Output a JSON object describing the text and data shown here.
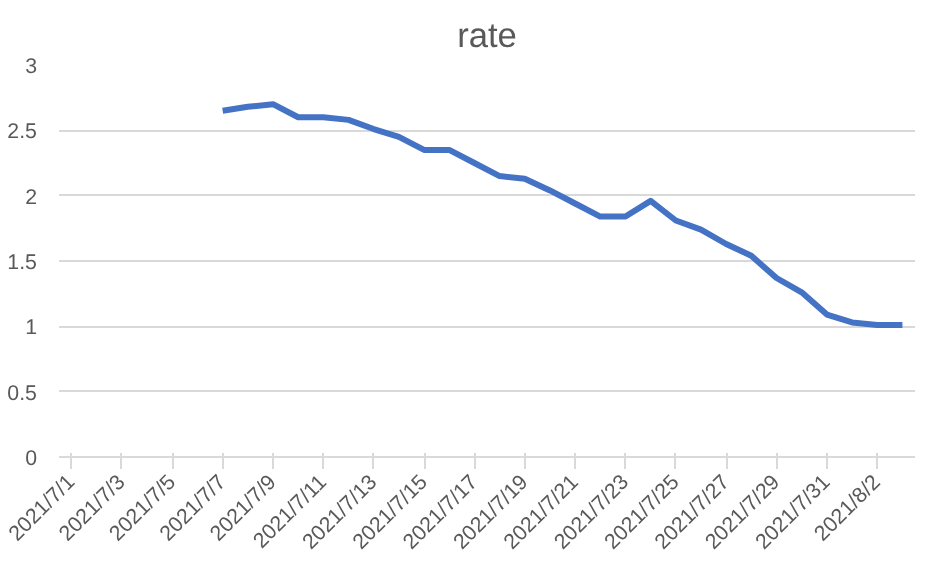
{
  "chart_data": {
    "type": "line",
    "title": "rate",
    "categories": [
      "2021/7/1",
      null,
      "2021/7/3",
      null,
      "2021/7/5",
      null,
      "2021/7/7",
      null,
      "2021/7/9",
      null,
      "2021/7/11",
      null,
      "2021/7/13",
      null,
      "2021/7/15",
      null,
      "2021/7/17",
      null,
      "2021/7/19",
      null,
      "2021/7/21",
      null,
      "2021/7/23",
      null,
      "2021/7/25",
      null,
      "2021/7/27",
      null,
      "2021/7/29",
      null,
      "2021/7/31",
      null,
      "2021/8/2",
      null
    ],
    "series": [
      {
        "color": "#4472c4",
        "values": [
          null,
          null,
          null,
          null,
          null,
          null,
          2.65,
          2.68,
          2.7,
          2.6,
          2.6,
          2.58,
          2.51,
          2.45,
          2.35,
          2.35,
          2.25,
          2.15,
          2.13,
          2.04,
          1.94,
          1.84,
          1.84,
          1.96,
          1.81,
          1.74,
          1.63,
          1.54,
          1.37,
          1.26,
          1.09,
          1.03,
          1.01,
          1.01
        ]
      }
    ],
    "ylim": [
      0,
      3
    ],
    "yticks": [
      0,
      0.5,
      1,
      1.5,
      2,
      2.5,
      3
    ],
    "grid": "y",
    "marker": "none",
    "line_style": "solid"
  }
}
